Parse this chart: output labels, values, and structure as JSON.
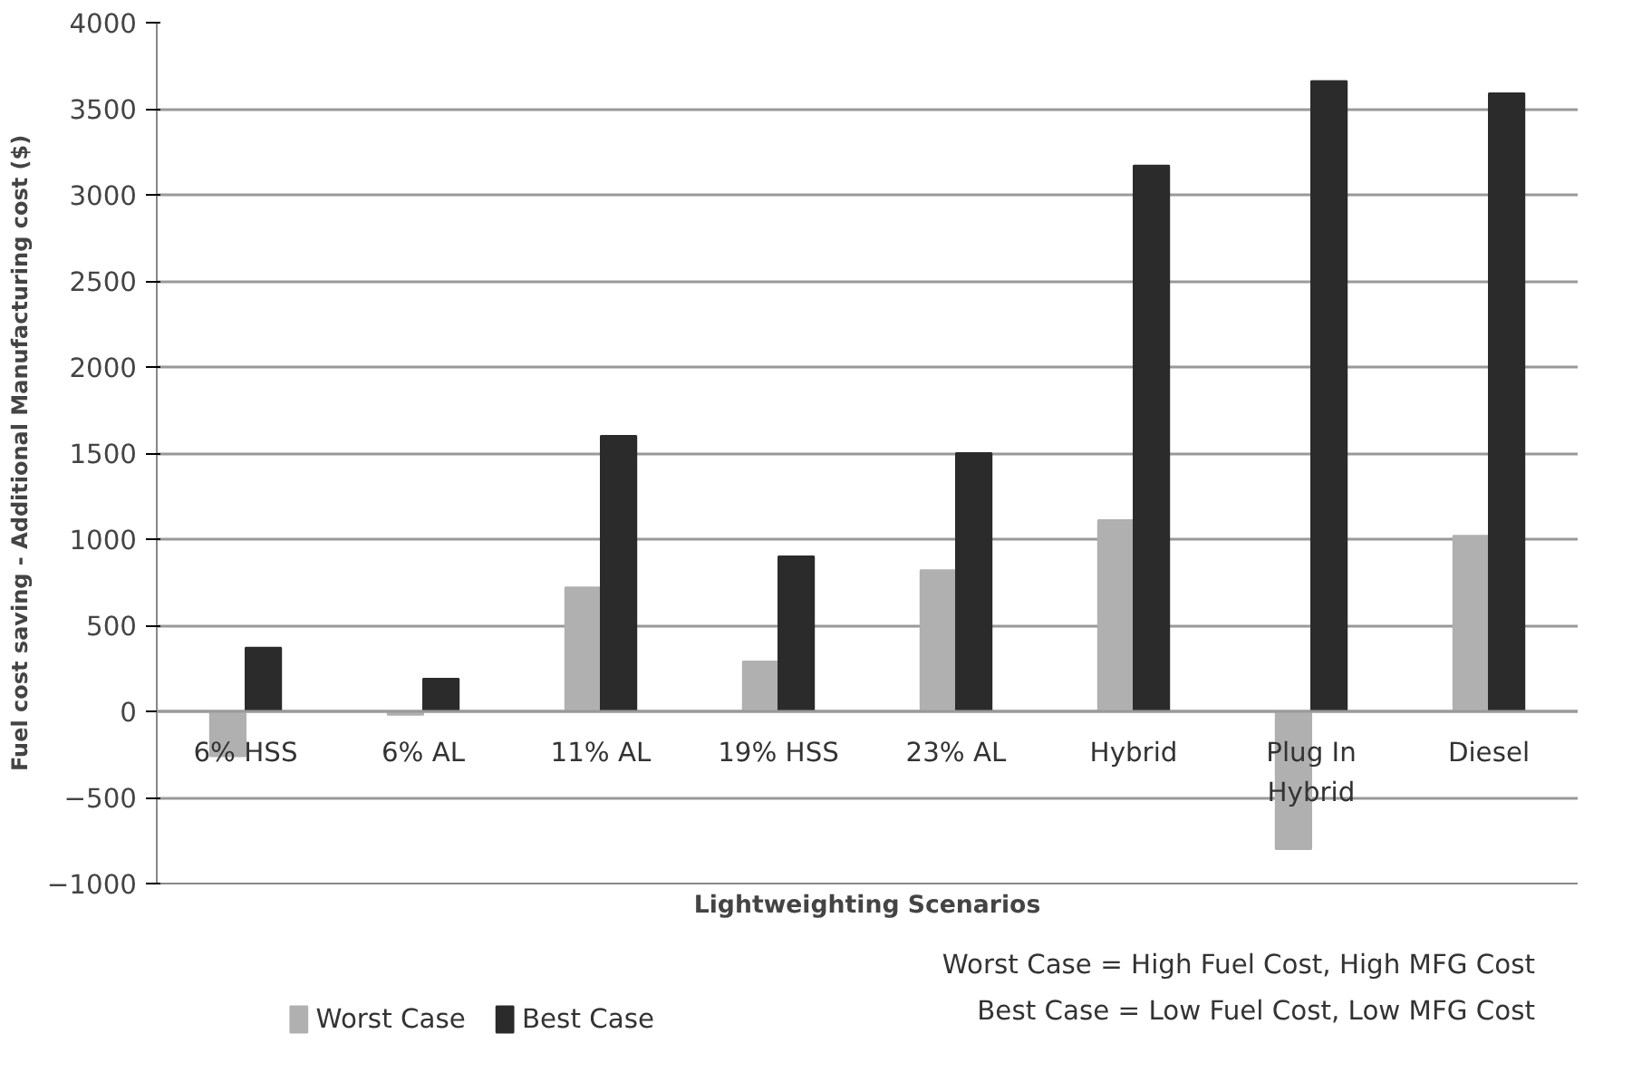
{
  "chart_data": {
    "type": "bar",
    "xlabel": "Lightweighting Scenarios",
    "ylabel": "Fuel cost saving - Additional Manufacturing cost ($)",
    "categories": [
      "6% HSS",
      "6% AL",
      "11% AL",
      "19% HSS",
      "23% AL",
      "Hybrid",
      "Plug In Hybrid",
      "Diesel"
    ],
    "series": [
      {
        "name": "Worst Case",
        "color": "#b0b0b0",
        "values": [
          -260,
          -20,
          720,
          290,
          820,
          1110,
          -800,
          1020
        ]
      },
      {
        "name": "Best Case",
        "color": "#2b2b2b",
        "values": [
          370,
          190,
          1600,
          900,
          1500,
          3170,
          3660,
          3590
        ]
      }
    ],
    "ylim": [
      -1000,
      4000
    ],
    "yticks": [
      -1000,
      -500,
      0,
      500,
      1000,
      1500,
      2000,
      2500,
      3000,
      3500,
      4000
    ],
    "grid": "y",
    "legend": "bottom left",
    "annotations": [
      "Worst Case = High Fuel Cost, High MFG Cost",
      "Best Case = Low Fuel Cost, Low MFG Cost"
    ]
  }
}
